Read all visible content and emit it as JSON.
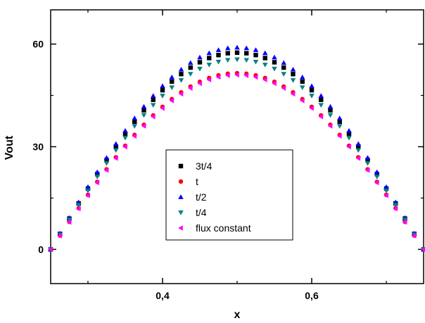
{
  "chart_data": {
    "type": "scatter",
    "title": "",
    "xlabel": "x",
    "ylabel": "Vout",
    "xlim": [
      0.25,
      0.75
    ],
    "ylim": [
      -10,
      70
    ],
    "xticks": [
      0.4,
      0.6
    ],
    "xtick_labels": [
      "0,4",
      "0,6"
    ],
    "yticks": [
      0,
      30,
      60
    ],
    "ytick_labels": [
      "0",
      "30",
      "60"
    ],
    "grid": false,
    "legend_position": "center",
    "x_domain": [
      0.25,
      0.75
    ],
    "num_points": 41,
    "shape": "sin(pi*(x-0.25)/0.5)",
    "series": [
      {
        "name": "3t/4",
        "marker": "square",
        "color": "#000000",
        "peak": 57.5
      },
      {
        "name": "t",
        "marker": "circle",
        "color": "#ff0000",
        "peak": 51.5
      },
      {
        "name": "t/2",
        "marker": "triangle-up",
        "color": "#0000ff",
        "peak": 59.0
      },
      {
        "name": "t/4",
        "marker": "triangle-down",
        "color": "#008080",
        "peak": 55.5
      },
      {
        "name": "flux constant",
        "marker": "triangle-left",
        "color": "#ff00ff",
        "peak": 51.0
      }
    ]
  }
}
